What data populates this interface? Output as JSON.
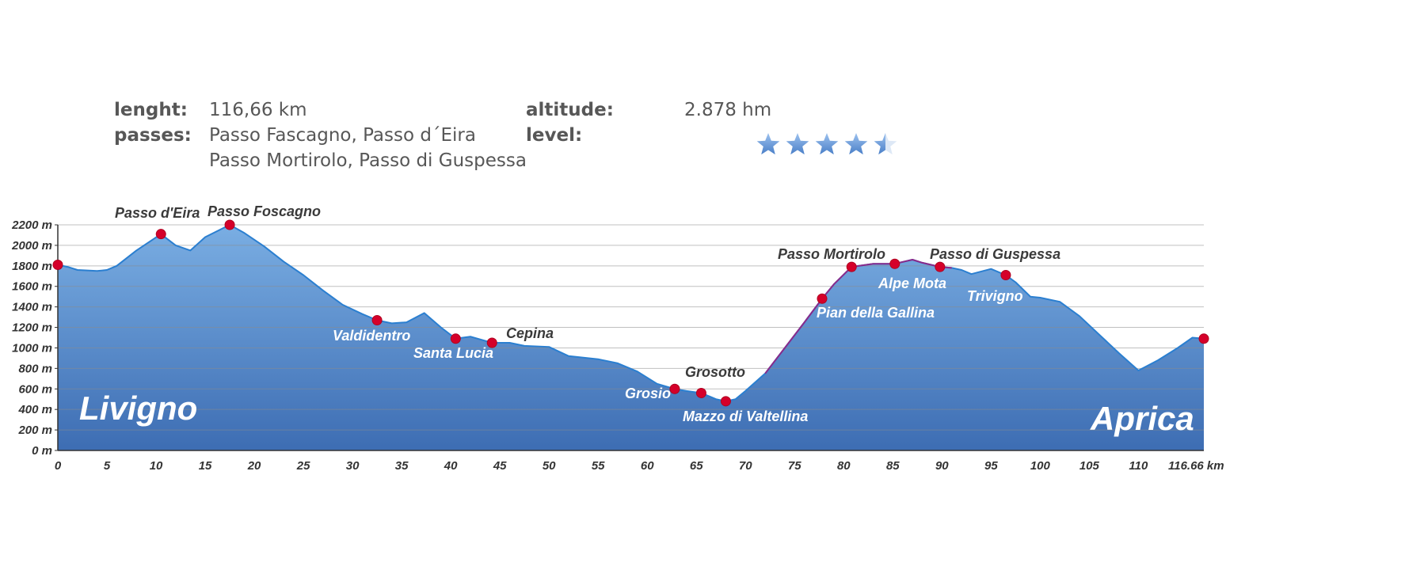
{
  "summary": {
    "length_label": "lenght:",
    "length_value": "116,66 km",
    "passes_label": "passes:",
    "passes_line1": "Passo Fascagno, Passo d´Eira",
    "passes_line2": "Passo Mortirolo, Passo di Guspessa",
    "altitude_label": "altitude:",
    "altitude_value": "2.878 hm",
    "level_label": "level:",
    "level_rating": 4.5,
    "level_max": 5,
    "star_color": "#4a7fc8"
  },
  "chart_data": {
    "type": "area",
    "x_unit": "km",
    "y_unit": "m",
    "xlim": [
      0,
      116.66
    ],
    "ylim": [
      0,
      2300
    ],
    "x_ticks": [
      "0",
      "5",
      "10",
      "15",
      "20",
      "25",
      "30",
      "35",
      "40",
      "45",
      "50",
      "55",
      "60",
      "65",
      "70",
      "75",
      "80",
      "85",
      "90",
      "95",
      "100",
      "105",
      "110",
      "116.66 km"
    ],
    "x_tick_values": [
      0,
      5,
      10,
      15,
      20,
      25,
      30,
      35,
      40,
      45,
      50,
      55,
      60,
      65,
      70,
      75,
      80,
      85,
      90,
      95,
      100,
      105,
      110,
      116.66
    ],
    "y_ticks": [
      "0 m",
      "200 m",
      "400 m",
      "600 m",
      "800 m",
      "1000 m",
      "1200 m",
      "1400 m",
      "1600 m",
      "1800 m",
      "2000 m",
      "2200 m"
    ],
    "y_tick_values": [
      0,
      200,
      400,
      600,
      800,
      1000,
      1200,
      1400,
      1600,
      1800,
      2000,
      2200
    ],
    "grid": true,
    "fill_color_top": "#7aaee3",
    "fill_color_bottom": "#3d6db3",
    "line_color": "#2b7fd0",
    "climb_line_color": "#8a2a8a",
    "marker_color": "#d5002a",
    "profile": {
      "x": [
        0,
        1,
        2,
        3,
        4,
        5,
        6,
        8,
        10.5,
        12,
        13.5,
        15,
        17.5,
        19,
        21,
        23,
        25,
        27,
        29,
        31,
        32.5,
        34,
        35.5,
        37.3,
        39,
        40.5,
        42,
        44.2,
        46,
        47.5,
        50,
        52,
        55,
        57,
        59,
        61,
        62.8,
        64,
        65.5,
        66.5,
        67,
        68,
        69,
        70,
        72,
        74,
        76,
        77.8,
        79,
        80.8,
        83,
        85.2,
        87,
        88,
        89.8,
        91,
        92,
        93,
        95,
        96.5,
        97.5,
        99,
        100,
        102,
        104,
        106,
        108,
        110,
        112,
        114,
        115.5,
        116.66
      ],
      "y": [
        1810,
        1790,
        1760,
        1755,
        1750,
        1760,
        1800,
        1950,
        2110,
        2000,
        1950,
        2080,
        2200,
        2120,
        1990,
        1840,
        1710,
        1560,
        1420,
        1330,
        1270,
        1240,
        1250,
        1340,
        1200,
        1090,
        1110,
        1050,
        1050,
        1020,
        1010,
        920,
        890,
        850,
        770,
        650,
        600,
        580,
        560,
        520,
        500,
        480,
        500,
        580,
        750,
        1000,
        1250,
        1480,
        1620,
        1790,
        1820,
        1820,
        1860,
        1830,
        1790,
        1780,
        1760,
        1720,
        1770,
        1710,
        1640,
        1500,
        1490,
        1450,
        1310,
        1130,
        950,
        780,
        880,
        1000,
        1100,
        1090
      ]
    },
    "climb_segments": [
      [
        72,
        91
      ]
    ],
    "markers": [
      {
        "x": 0,
        "y": 1810
      },
      {
        "x": 10.5,
        "y": 2110
      },
      {
        "x": 17.5,
        "y": 2200
      },
      {
        "x": 32.5,
        "y": 1270
      },
      {
        "x": 40.5,
        "y": 1090
      },
      {
        "x": 44.2,
        "y": 1050
      },
      {
        "x": 62.8,
        "y": 600
      },
      {
        "x": 65.5,
        "y": 560
      },
      {
        "x": 68,
        "y": 480
      },
      {
        "x": 77.8,
        "y": 1480
      },
      {
        "x": 80.8,
        "y": 1790
      },
      {
        "x": 85.2,
        "y": 1820
      },
      {
        "x": 89.8,
        "y": 1790
      },
      {
        "x": 96.5,
        "y": 1710
      },
      {
        "x": 116.66,
        "y": 1090
      }
    ],
    "labels": [
      {
        "text": "Passo d'Eira",
        "color": "dark",
        "size": "small"
      },
      {
        "text": "Passo Foscagno",
        "color": "dark",
        "size": "small"
      },
      {
        "text": "Valdidentro",
        "color": "light",
        "size": "small"
      },
      {
        "text": "Santa Lucia",
        "color": "light",
        "size": "small"
      },
      {
        "text": "Cepina",
        "color": "dark",
        "size": "small"
      },
      {
        "text": "Grosio",
        "color": "light",
        "size": "small"
      },
      {
        "text": "Grosotto",
        "color": "dark",
        "size": "small"
      },
      {
        "text": "Mazzo di Valtellina",
        "color": "light",
        "size": "small"
      },
      {
        "text": "Passo Mortirolo",
        "color": "dark",
        "size": "small"
      },
      {
        "text": "Pian della Gallina",
        "color": "light",
        "size": "small"
      },
      {
        "text": "Alpe Mota",
        "color": "light",
        "size": "small"
      },
      {
        "text": "Passo di Guspessa",
        "color": "dark",
        "size": "small"
      },
      {
        "text": "Trivigno",
        "color": "light",
        "size": "small"
      },
      {
        "text": "Livigno",
        "color": "light",
        "size": "large"
      },
      {
        "text": "Aprica",
        "color": "light",
        "size": "large"
      }
    ]
  }
}
